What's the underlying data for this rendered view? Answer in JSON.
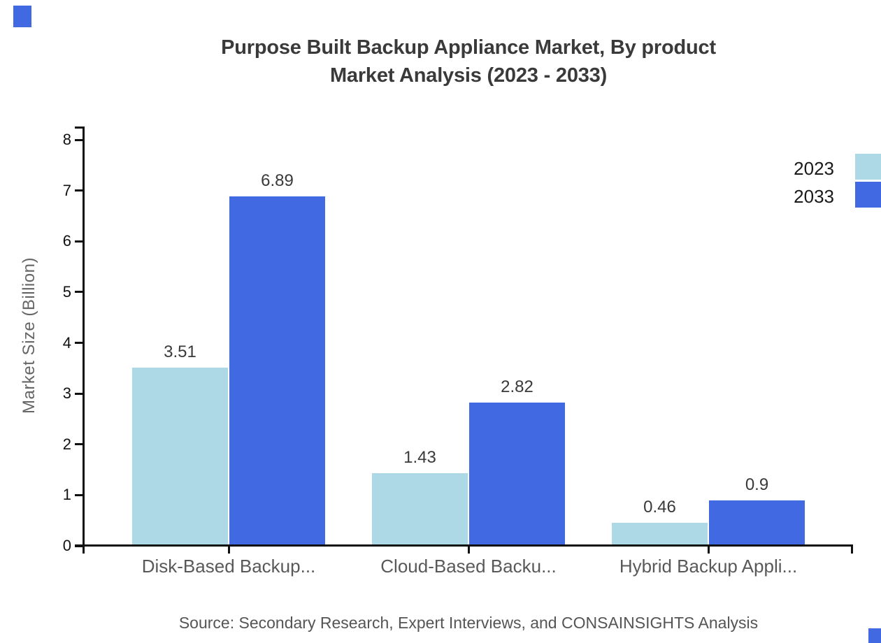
{
  "title": {
    "line1": "Purpose Built Backup Appliance Market, By product",
    "line2": "Market Analysis (2023 - 2033)"
  },
  "y_axis": {
    "label": "Market Size (Billion)"
  },
  "legend": {
    "items": [
      {
        "label": "2023"
      },
      {
        "label": "2033"
      }
    ]
  },
  "source": {
    "text": "Source: Secondary Research, Expert Interviews, and CONSAINSIGHTS Analysis"
  },
  "colors": {
    "series_2023": "#ADD8E6",
    "series_2033": "#4169E1",
    "axis": "#111111",
    "title_text": "#3a3a3a",
    "category_text": "#595959",
    "y_axis_title_text": "#666666",
    "source_text": "#555555",
    "corner_marker": "#4169E1"
  },
  "chart_data": {
    "type": "bar",
    "title": "Purpose Built Backup Appliance Market, By product Market Analysis (2023 - 2033)",
    "categories": [
      "Disk-Based Backup...",
      "Cloud-Based Backu...",
      "Hybrid Backup Appli..."
    ],
    "series": [
      {
        "name": "2023",
        "color": "#ADD8E6",
        "values": [
          3.51,
          1.43,
          0.46
        ]
      },
      {
        "name": "2033",
        "color": "#4169E1",
        "values": [
          6.89,
          2.82,
          0.9
        ]
      }
    ],
    "value_label_texts": [
      [
        "3.51",
        "1.43",
        "0.46"
      ],
      [
        "6.89",
        "2.82",
        "0.9"
      ]
    ],
    "xlabel": "",
    "ylabel": "Market Size (Billion)",
    "ylim": [
      0,
      8
    ],
    "ytick_step": 1,
    "ytick_labels": [
      "0",
      "1",
      "2",
      "3",
      "4",
      "5",
      "6",
      "7",
      "8"
    ],
    "grid": false,
    "legend_position": "top-right",
    "value_labels_shown": true
  }
}
